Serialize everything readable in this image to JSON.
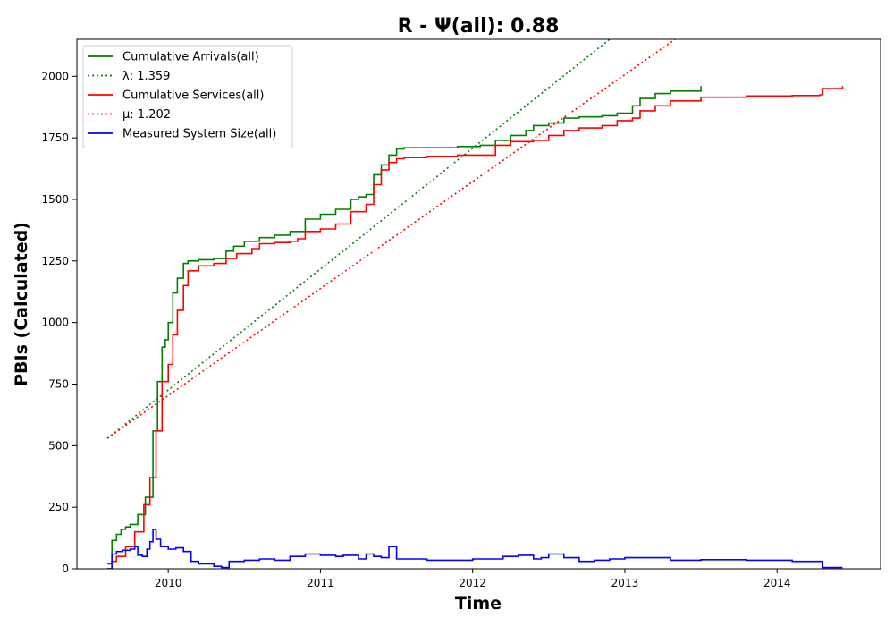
{
  "chart_data": {
    "type": "line",
    "title": "R -  Ψ(all): 0.88",
    "xlabel": "Time",
    "ylabel": "PBIs (Calculated)",
    "xlim": [
      2009.4,
      2014.68
    ],
    "ylim": [
      0,
      2150
    ],
    "x_ticks": [
      2010,
      2011,
      2012,
      2013,
      2014
    ],
    "x_tick_labels": [
      "2010",
      "2011",
      "2012",
      "2013",
      "2014"
    ],
    "y_ticks": [
      0,
      250,
      500,
      750,
      1000,
      1250,
      1500,
      1750,
      2000
    ],
    "y_tick_labels": [
      "0",
      "250",
      "500",
      "750",
      "1000",
      "1250",
      "1500",
      "1750",
      "2000"
    ],
    "grid": false,
    "legend_position": "top-left",
    "series": [
      {
        "name": "Cumulative Arrivals(all)",
        "color": "#008000",
        "style": "solid",
        "x": [
          2009.6,
          2009.63,
          2009.66,
          2009.69,
          2009.72,
          2009.75,
          2009.8,
          2009.85,
          2009.9,
          2009.93,
          2009.96,
          2009.98,
          2010.0,
          2010.03,
          2010.06,
          2010.1,
          2010.13,
          2010.2,
          2010.3,
          2010.38,
          2010.43,
          2010.5,
          2010.6,
          2010.7,
          2010.8,
          2010.9,
          2011.0,
          2011.1,
          2011.2,
          2011.25,
          2011.3,
          2011.35,
          2011.4,
          2011.45,
          2011.5,
          2011.55,
          2011.7,
          2011.9,
          2012.05,
          2012.15,
          2012.25,
          2012.35,
          2012.4,
          2012.5,
          2012.6,
          2012.7,
          2012.85,
          2012.95,
          2013.05,
          2013.1,
          2013.2,
          2013.3,
          2013.5
        ],
        "y": [
          20,
          115,
          140,
          160,
          170,
          180,
          220,
          290,
          560,
          760,
          900,
          930,
          1000,
          1120,
          1180,
          1240,
          1250,
          1255,
          1260,
          1290,
          1310,
          1330,
          1345,
          1355,
          1370,
          1420,
          1440,
          1460,
          1500,
          1510,
          1520,
          1600,
          1640,
          1680,
          1705,
          1710,
          1710,
          1715,
          1720,
          1740,
          1760,
          1780,
          1800,
          1810,
          1830,
          1835,
          1840,
          1850,
          1880,
          1910,
          1930,
          1940,
          1960
        ]
      },
      {
        "name": "λ: 1.359",
        "color": "#008000",
        "style": "dotted",
        "x": [
          2009.6,
          2012.9
        ],
        "y": [
          530,
          2150
        ]
      },
      {
        "name": "Cumulative Services(all)",
        "color": "#ff0000",
        "style": "solid",
        "x": [
          2009.6,
          2009.63,
          2009.66,
          2009.72,
          2009.78,
          2009.84,
          2009.88,
          2009.92,
          2009.96,
          2010.0,
          2010.03,
          2010.06,
          2010.1,
          2010.13,
          2010.2,
          2010.3,
          2010.38,
          2010.45,
          2010.55,
          2010.6,
          2010.7,
          2010.8,
          2010.85,
          2010.9,
          2011.0,
          2011.1,
          2011.2,
          2011.3,
          2011.35,
          2011.4,
          2011.45,
          2011.5,
          2011.55,
          2011.7,
          2011.9,
          2012.05,
          2012.15,
          2012.25,
          2012.4,
          2012.5,
          2012.6,
          2012.7,
          2012.85,
          2012.95,
          2013.05,
          2013.1,
          2013.2,
          2013.3,
          2013.5,
          2013.8,
          2014.1,
          2014.28,
          2014.3,
          2014.43
        ],
        "y": [
          0,
          30,
          50,
          90,
          150,
          260,
          370,
          560,
          760,
          830,
          950,
          1050,
          1150,
          1210,
          1230,
          1240,
          1260,
          1280,
          1300,
          1320,
          1325,
          1330,
          1340,
          1370,
          1380,
          1400,
          1450,
          1480,
          1560,
          1620,
          1650,
          1665,
          1670,
          1675,
          1680,
          1680,
          1720,
          1735,
          1740,
          1760,
          1780,
          1790,
          1800,
          1820,
          1830,
          1860,
          1880,
          1900,
          1915,
          1920,
          1922,
          1925,
          1950,
          1960
        ]
      },
      {
        "name": "μ: 1.202",
        "color": "#ff0000",
        "style": "dotted",
        "x": [
          2009.6,
          2013.33
        ],
        "y": [
          530,
          2150
        ]
      },
      {
        "name": "Measured System Size(all)",
        "color": "#0000ff",
        "style": "solid",
        "x": [
          2009.6,
          2009.63,
          2009.66,
          2009.7,
          2009.75,
          2009.78,
          2009.8,
          2009.83,
          2009.86,
          2009.88,
          2009.9,
          2009.92,
          2009.95,
          2010.0,
          2010.05,
          2010.1,
          2010.15,
          2010.2,
          2010.3,
          2010.35,
          2010.4,
          2010.5,
          2010.6,
          2010.7,
          2010.8,
          2010.9,
          2011.0,
          2011.1,
          2011.15,
          2011.25,
          2011.3,
          2011.35,
          2011.4,
          2011.45,
          2011.5,
          2011.7,
          2011.9,
          2012.0,
          2012.2,
          2012.3,
          2012.4,
          2012.45,
          2012.5,
          2012.6,
          2012.7,
          2012.8,
          2012.9,
          2013.0,
          2013.1,
          2013.3,
          2013.5,
          2013.8,
          2014.1,
          2014.28,
          2014.3,
          2014.43
        ],
        "y": [
          0,
          60,
          70,
          75,
          80,
          90,
          55,
          50,
          80,
          110,
          160,
          120,
          90,
          80,
          85,
          70,
          30,
          20,
          10,
          5,
          30,
          35,
          40,
          35,
          50,
          60,
          55,
          50,
          55,
          40,
          60,
          50,
          45,
          90,
          40,
          35,
          35,
          40,
          50,
          55,
          40,
          45,
          60,
          45,
          30,
          35,
          40,
          45,
          45,
          35,
          37,
          35,
          30,
          30,
          5,
          5
        ]
      }
    ]
  }
}
